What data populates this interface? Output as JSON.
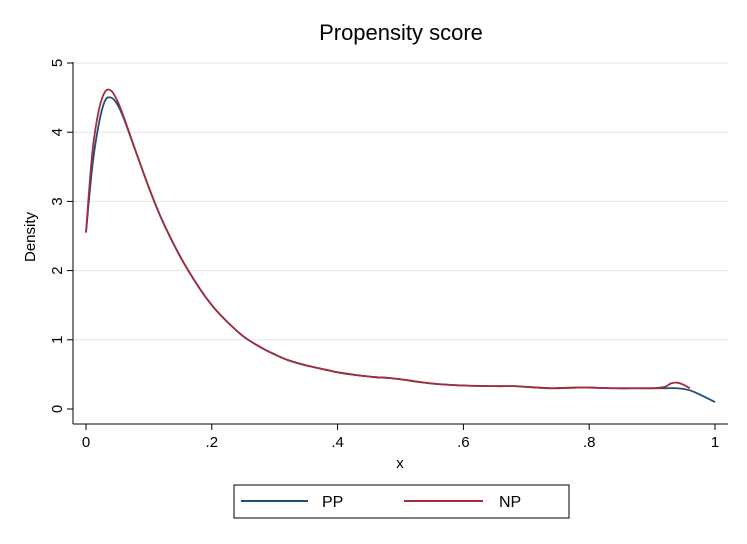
{
  "chart_data": {
    "type": "line",
    "title": "Propensity score",
    "xlabel": "x",
    "ylabel": "Density",
    "xlim": [
      0,
      1
    ],
    "ylim": [
      0,
      5
    ],
    "x_ticks": [
      0,
      0.2,
      0.4,
      0.6,
      0.8,
      1
    ],
    "x_tick_labels": [
      "0",
      ".2",
      ".4",
      ".6",
      ".8",
      "1"
    ],
    "y_ticks": [
      0,
      1,
      2,
      3,
      4,
      5
    ],
    "y_tick_labels": [
      "0",
      "1",
      "2",
      "3",
      "4",
      "5"
    ],
    "grid": "horizontal",
    "legend_position": "bottom",
    "series": [
      {
        "name": "PP",
        "color": "#1f4e79",
        "x": [
          0.0,
          0.01,
          0.02,
          0.03,
          0.04,
          0.05,
          0.06,
          0.08,
          0.1,
          0.12,
          0.15,
          0.18,
          0.2,
          0.22,
          0.25,
          0.28,
          0.3,
          0.32,
          0.35,
          0.38,
          0.4,
          0.43,
          0.46,
          0.48,
          0.5,
          0.53,
          0.56,
          0.6,
          0.65,
          0.68,
          0.7,
          0.74,
          0.78,
          0.8,
          0.84,
          0.88,
          0.92,
          0.94,
          0.96,
          0.98,
          1.0
        ],
        "y": [
          2.55,
          3.5,
          4.1,
          4.45,
          4.5,
          4.4,
          4.2,
          3.7,
          3.2,
          2.75,
          2.2,
          1.75,
          1.5,
          1.3,
          1.05,
          0.88,
          0.79,
          0.71,
          0.63,
          0.57,
          0.53,
          0.49,
          0.46,
          0.45,
          0.43,
          0.39,
          0.36,
          0.34,
          0.33,
          0.33,
          0.32,
          0.3,
          0.31,
          0.31,
          0.3,
          0.3,
          0.3,
          0.3,
          0.27,
          0.19,
          0.1
        ]
      },
      {
        "name": "NP",
        "color": "#a02c3c",
        "x": [
          0.0,
          0.01,
          0.02,
          0.03,
          0.04,
          0.05,
          0.06,
          0.08,
          0.1,
          0.12,
          0.15,
          0.18,
          0.2,
          0.22,
          0.25,
          0.28,
          0.3,
          0.32,
          0.35,
          0.38,
          0.4,
          0.43,
          0.46,
          0.48,
          0.5,
          0.53,
          0.56,
          0.6,
          0.65,
          0.68,
          0.7,
          0.74,
          0.78,
          0.8,
          0.84,
          0.88,
          0.9,
          0.92,
          0.93,
          0.94,
          0.95,
          0.96
        ],
        "y": [
          2.55,
          3.7,
          4.3,
          4.58,
          4.6,
          4.45,
          4.22,
          3.7,
          3.2,
          2.75,
          2.2,
          1.75,
          1.5,
          1.3,
          1.05,
          0.88,
          0.79,
          0.71,
          0.63,
          0.57,
          0.53,
          0.49,
          0.46,
          0.45,
          0.43,
          0.39,
          0.36,
          0.34,
          0.33,
          0.33,
          0.32,
          0.3,
          0.31,
          0.31,
          0.3,
          0.3,
          0.3,
          0.32,
          0.37,
          0.38,
          0.35,
          0.3
        ]
      }
    ]
  }
}
